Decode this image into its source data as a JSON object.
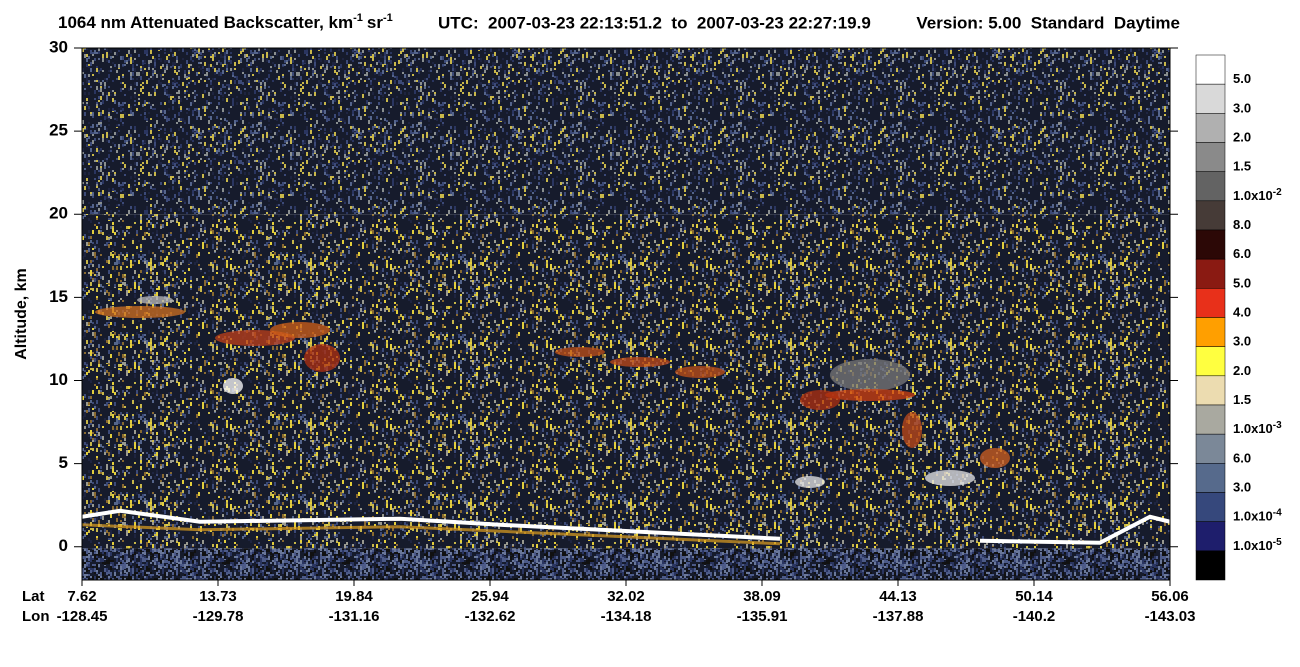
{
  "chart_data": {
    "type": "curtain",
    "title_main": "1064 nm Attenuated Backscatter, km",
    "title_exp1": "-1",
    "title_sr": "sr",
    "title_exp2": "-1",
    "utc": "UTC:  2007-03-23 22:13:51.2  to  2007-03-23 22:27:19.9",
    "version": "Version: 5.00  Standard  Daytime",
    "y_label": "Altitude, km",
    "ylim": [
      -2,
      30
    ],
    "yticks": [
      0,
      5,
      10,
      15,
      20,
      25,
      30
    ],
    "x_row_labels": [
      "Lat",
      "Lon"
    ],
    "lat": [
      7.62,
      13.73,
      19.84,
      25.94,
      32.02,
      38.09,
      44.13,
      50.14,
      56.06
    ],
    "lon": [
      -128.45,
      -129.78,
      -131.16,
      -132.62,
      -134.18,
      -135.91,
      -137.88,
      -140.2,
      -143.03
    ],
    "colorbar_colors": [
      "#ffffff",
      "#d9d9d9",
      "#b0b0b0",
      "#8a8a8a",
      "#636363",
      "#463b37",
      "#2c0806",
      "#8a1a12",
      "#e8301a",
      "#ff9f00",
      "#ffff40",
      "#ecdcb0",
      "#a9a9a0",
      "#7b8898",
      "#566a8c",
      "#36487c",
      "#1e1e6c",
      "#000000"
    ],
    "colorbar_levels": [
      {
        "value": 0.05,
        "label": "5.0"
      },
      {
        "value": 0.03,
        "label": "3.0"
      },
      {
        "value": 0.02,
        "label": "2.0"
      },
      {
        "value": 0.015,
        "label": "1.5"
      },
      {
        "value": 0.01,
        "label": "1.0x10",
        "exponent": "-2"
      },
      {
        "value": 0.008,
        "label": "8.0"
      },
      {
        "value": 0.006,
        "label": "6.0"
      },
      {
        "value": 0.005,
        "label": "5.0"
      },
      {
        "value": 0.004,
        "label": "4.0"
      },
      {
        "value": 0.003,
        "label": "3.0"
      },
      {
        "value": 0.002,
        "label": "2.0"
      },
      {
        "value": 0.0015,
        "label": "1.5"
      },
      {
        "value": 0.001,
        "label": "1.0x10",
        "exponent": "-3"
      },
      {
        "value": 0.0006,
        "label": "6.0"
      },
      {
        "value": 0.0003,
        "label": "3.0"
      },
      {
        "value": 0.0001,
        "label": "1.0x10",
        "exponent": "-4"
      },
      {
        "value": 1e-05,
        "label": "1.0x10",
        "exponent": "-5"
      }
    ]
  }
}
